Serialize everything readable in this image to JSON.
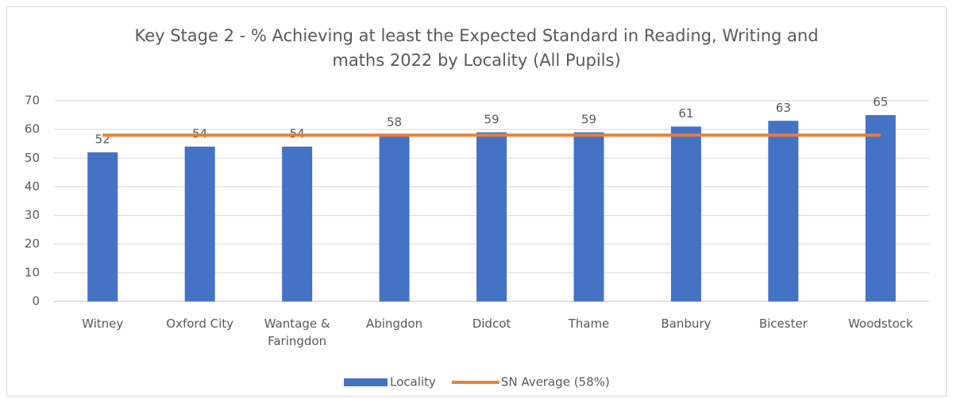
{
  "chart_data": {
    "type": "bar",
    "title": "Key Stage 2 - % Achieving at least the Expected Standard in Reading, Writing and maths 2022 by Locality (All Pupils)",
    "categories": [
      "Witney",
      "Oxford City",
      "Wantage & Faringdon",
      "Abingdon",
      "Didcot",
      "Thame",
      "Banbury",
      "Bicester",
      "Woodstock"
    ],
    "series": [
      {
        "name": "Locality",
        "color": "#4472c4",
        "type": "bar",
        "values": [
          52,
          54,
          54,
          58,
          59,
          59,
          61,
          63,
          65
        ]
      },
      {
        "name": "SN Average (58%)",
        "color": "#ed7d31",
        "type": "line",
        "values": [
          58,
          58,
          58,
          58,
          58,
          58,
          58,
          58,
          58
        ]
      }
    ],
    "ylim": [
      0,
      70
    ],
    "yticks": [
      0,
      10,
      20,
      30,
      40,
      50,
      60,
      70
    ],
    "grid": true,
    "legend": "bottom"
  }
}
